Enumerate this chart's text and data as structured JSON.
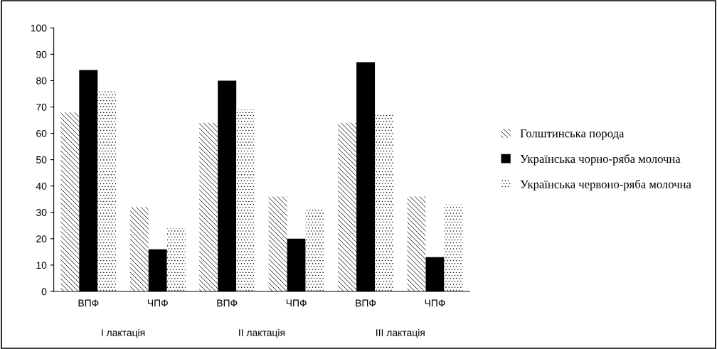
{
  "chart_data": {
    "type": "bar",
    "categories": [
      "ВПФ",
      "ЧПФ",
      "ВПФ",
      "ЧПФ",
      "ВПФ",
      "ЧПФ"
    ],
    "series": [
      {
        "name": "Голштинська порода",
        "color": "#ffffff",
        "values": [
          68,
          32,
          64,
          36,
          64,
          36
        ]
      },
      {
        "name": "Українська чорно-ряба молочна",
        "color": "#000000",
        "values": [
          84,
          16,
          80,
          20,
          87,
          13
        ]
      },
      {
        "name": "Українська червоно-ряба молочна",
        "color": "#ffffff",
        "values": [
          76,
          24,
          69,
          31,
          67,
          33
        ]
      }
    ],
    "annotations": [
      "I лактація",
      "II лактація",
      "III лактація"
    ],
    "ylim": [
      0,
      100
    ],
    "yticks": [
      0,
      10,
      20,
      30,
      40,
      50,
      60,
      70,
      80,
      90,
      100
    ],
    "grid": false,
    "legend": "right"
  }
}
